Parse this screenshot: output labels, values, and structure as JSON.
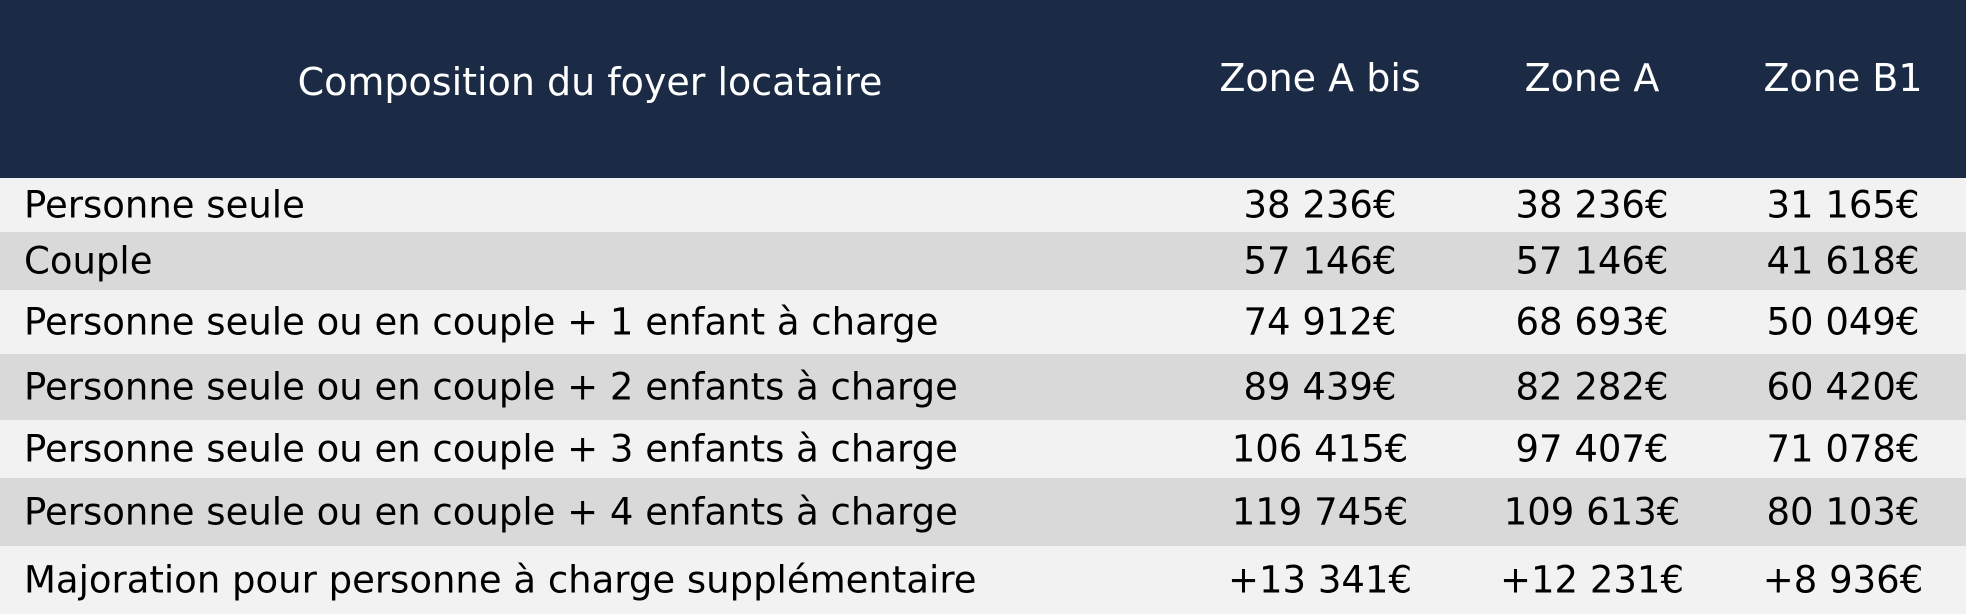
{
  "header": {
    "columns": [
      "Composition du foyer locataire",
      "Zone A bis",
      "Zone A",
      "Zone B1"
    ]
  },
  "table": {
    "rows": [
      [
        "Personne seule",
        "38 236€",
        "38 236€",
        "31 165€"
      ],
      [
        "Couple",
        "57 146€",
        "57 146€",
        "41 618€"
      ],
      [
        "Personne seule ou en couple + 1 enfant à charge",
        "74 912€",
        "68 693€",
        "50 049€"
      ],
      [
        "Personne seule ou en couple + 2 enfants à charge",
        "89 439€",
        "82 282€",
        "60 420€"
      ],
      [
        "Personne seule ou en couple + 3 enfants à charge",
        "106 415€",
        "97 407€",
        "71 078€"
      ],
      [
        "Personne seule ou en couple + 4 enfants à charge",
        "119 745€",
        "109 613€",
        "80 103€"
      ],
      [
        "Majoration pour personne à charge supplémentaire",
        "+13 341€",
        "+12 231€",
        "+8 936€"
      ]
    ]
  }
}
